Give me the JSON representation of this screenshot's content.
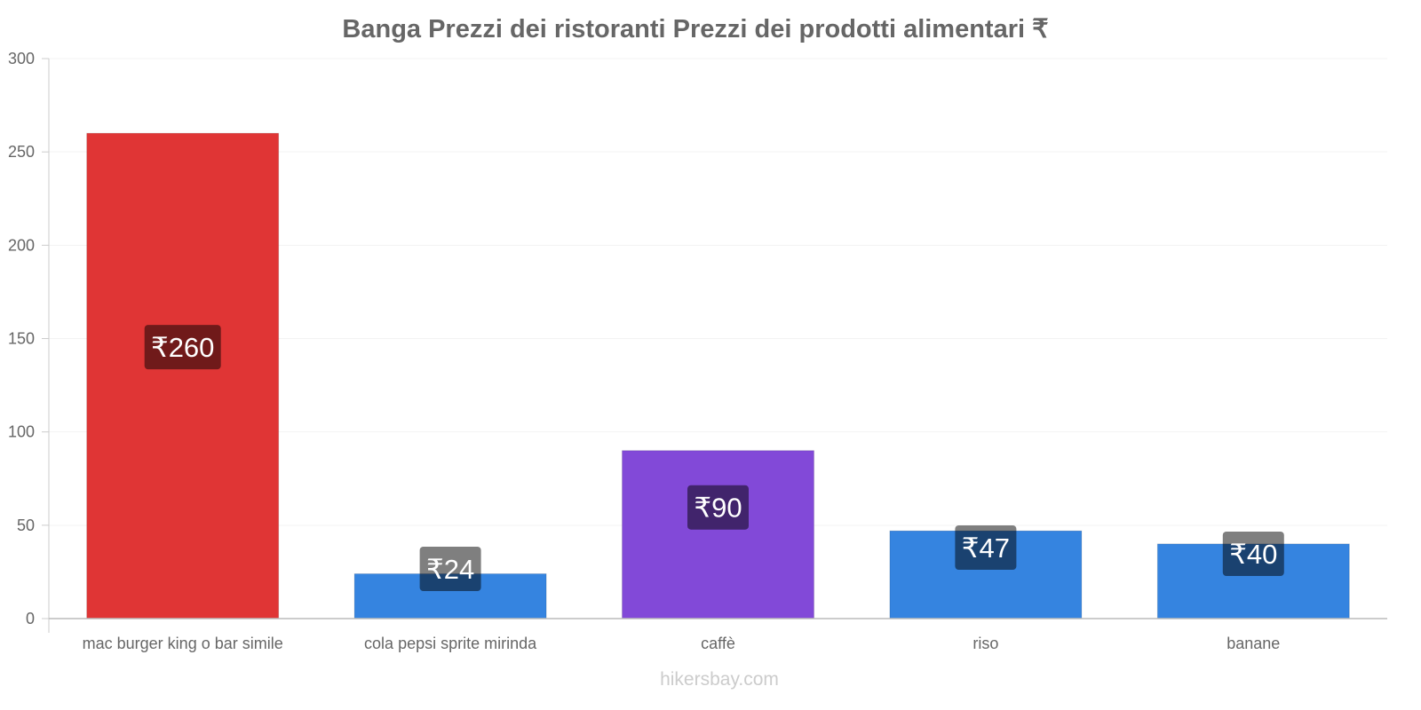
{
  "chart_data": {
    "type": "bar",
    "title": "Banga Prezzi dei ristoranti Prezzi dei prodotti alimentari ₹",
    "categories": [
      "mac burger king o bar simile",
      "cola pepsi sprite mirinda",
      "caffè",
      "riso",
      "banane"
    ],
    "values": [
      260,
      24,
      90,
      47,
      40
    ],
    "value_labels": [
      "₹260",
      "₹24",
      "₹90",
      "₹47",
      "₹40"
    ],
    "colors": [
      "#e03535",
      "#3584e0",
      "#8249d8",
      "#3584e0",
      "#3584e0"
    ],
    "ylim": [
      0,
      300
    ],
    "yticks": [
      "0",
      "50",
      "100",
      "150",
      "200",
      "250",
      "300"
    ],
    "xlabel": "",
    "ylabel": "",
    "grid": true,
    "watermark": "hikersbay.com"
  }
}
